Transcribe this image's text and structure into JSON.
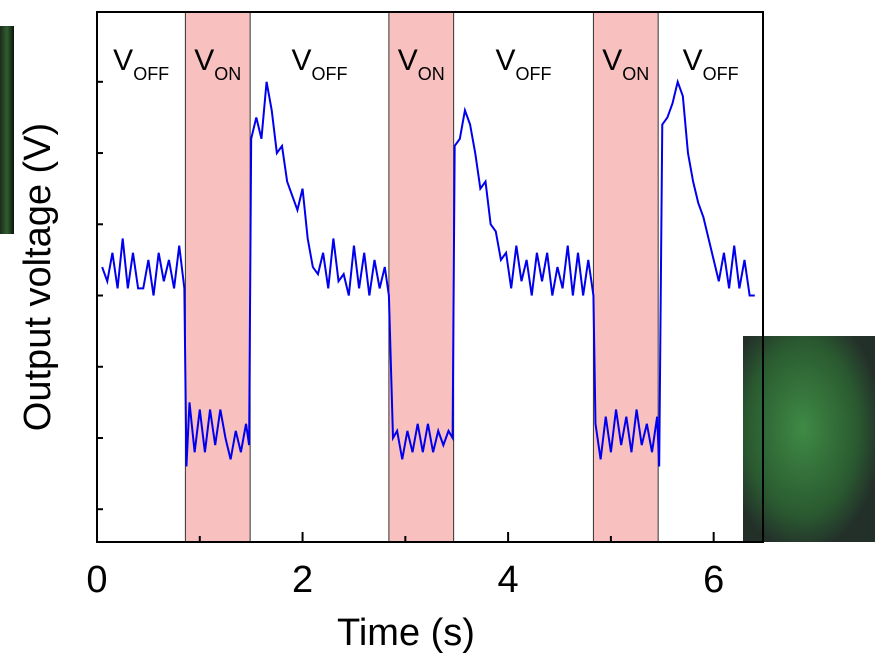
{
  "chart_data": {
    "type": "line",
    "x_label": "Time (s)",
    "y_label": "Output voltage (V)",
    "xlim": [
      0,
      6.48
    ],
    "ylim": [
      -0.46,
      6.98
    ],
    "xticks": [
      0,
      2,
      4,
      6
    ],
    "xminorticks": [
      1,
      3,
      5
    ],
    "yticks": [
      0,
      1,
      2,
      3,
      4,
      5,
      6
    ],
    "shaded_regions": [
      [
        0.86,
        1.49
      ],
      [
        2.84,
        3.47
      ],
      [
        4.83,
        5.46
      ]
    ],
    "shade_color": "#f9c0c0",
    "annotations": [
      {
        "text": "V",
        "sub": "OFF"
      },
      {
        "text": "V",
        "sub": "ON"
      },
      {
        "text": "V",
        "sub": "OFF"
      },
      {
        "text": "V",
        "sub": "ON"
      },
      {
        "text": "V",
        "sub": "OFF"
      },
      {
        "text": "V",
        "sub": "ON"
      },
      {
        "text": "V",
        "sub": "OFF"
      }
    ],
    "series": [
      {
        "color": "#0000ee",
        "x": [
          0.05,
          0.1,
          0.15,
          0.2,
          0.25,
          0.3,
          0.35,
          0.4,
          0.45,
          0.5,
          0.55,
          0.6,
          0.65,
          0.7,
          0.75,
          0.8,
          0.85,
          0.87,
          0.9,
          0.95,
          1.0,
          1.05,
          1.1,
          1.15,
          1.2,
          1.25,
          1.3,
          1.35,
          1.4,
          1.45,
          1.48,
          1.5,
          1.55,
          1.6,
          1.65,
          1.7,
          1.75,
          1.8,
          1.85,
          1.9,
          1.95,
          2.0,
          2.05,
          2.1,
          2.15,
          2.2,
          2.25,
          2.3,
          2.35,
          2.4,
          2.45,
          2.5,
          2.55,
          2.6,
          2.65,
          2.7,
          2.75,
          2.8,
          2.84,
          2.88,
          2.92,
          2.97,
          3.02,
          3.07,
          3.12,
          3.17,
          3.22,
          3.27,
          3.32,
          3.37,
          3.42,
          3.46,
          3.48,
          3.53,
          3.58,
          3.63,
          3.68,
          3.73,
          3.78,
          3.83,
          3.88,
          3.93,
          3.98,
          4.03,
          4.08,
          4.13,
          4.18,
          4.23,
          4.28,
          4.33,
          4.38,
          4.43,
          4.48,
          4.53,
          4.58,
          4.63,
          4.68,
          4.73,
          4.78,
          4.83,
          4.85,
          4.9,
          4.95,
          5.0,
          5.05,
          5.1,
          5.15,
          5.2,
          5.25,
          5.3,
          5.35,
          5.4,
          5.45,
          5.47,
          5.5,
          5.55,
          5.6,
          5.65,
          5.7,
          5.75,
          5.8,
          5.85,
          5.9,
          5.95,
          6.0,
          6.05,
          6.1,
          6.15,
          6.2,
          6.25,
          6.3,
          6.35,
          6.4
        ],
        "values": [
          3.4,
          3.2,
          3.6,
          3.1,
          3.8,
          3.1,
          3.6,
          3.1,
          3.1,
          3.5,
          3.0,
          3.6,
          3.2,
          3.5,
          3.1,
          3.7,
          3.1,
          0.6,
          1.5,
          0.8,
          1.4,
          0.8,
          1.4,
          0.9,
          1.4,
          1.0,
          0.7,
          1.1,
          0.8,
          1.2,
          0.9,
          5.2,
          5.5,
          5.2,
          6.0,
          5.6,
          5.0,
          5.1,
          4.6,
          4.4,
          4.2,
          4.5,
          3.8,
          3.4,
          3.3,
          3.6,
          3.1,
          3.8,
          3.2,
          3.3,
          3.0,
          3.7,
          3.1,
          3.6,
          3.0,
          3.5,
          3.1,
          3.4,
          3.0,
          1.0,
          1.1,
          0.7,
          1.1,
          0.8,
          1.2,
          0.8,
          1.2,
          0.8,
          1.1,
          0.9,
          1.1,
          1.0,
          5.1,
          5.2,
          5.6,
          5.4,
          5.0,
          4.5,
          4.6,
          4.0,
          3.9,
          3.5,
          3.6,
          3.1,
          3.7,
          3.2,
          3.5,
          3.0,
          3.6,
          3.2,
          3.6,
          3.0,
          3.4,
          3.1,
          3.7,
          3.0,
          3.6,
          3.0,
          3.5,
          3.0,
          1.2,
          0.7,
          1.3,
          0.8,
          1.4,
          0.9,
          1.3,
          0.8,
          1.4,
          0.9,
          1.2,
          0.8,
          1.3,
          0.6,
          5.4,
          5.5,
          5.7,
          6.0,
          5.8,
          5.0,
          4.6,
          4.3,
          4.1,
          3.8,
          3.5,
          3.2,
          3.6,
          3.1,
          3.7,
          3.1,
          3.5,
          3.0,
          3.0
        ]
      }
    ]
  }
}
